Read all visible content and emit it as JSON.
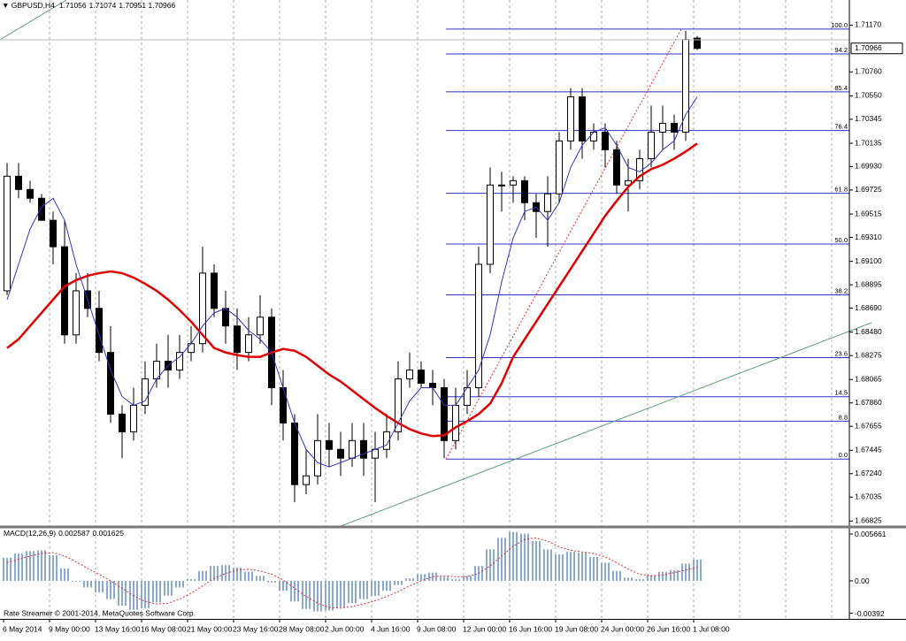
{
  "chart_data": {
    "type": "candlestick",
    "title": "GBPUSD,H4",
    "categories": [
      "6 May 2014",
      null,
      null,
      null,
      "9 May 00:00",
      null,
      null,
      null,
      "13 May 16:00",
      null,
      null,
      null,
      "16 May 08:00",
      null,
      null,
      null,
      "21 May 00:00",
      null,
      null,
      null,
      "23 May 16:00",
      null,
      null,
      null,
      "28 May 08:00",
      null,
      null,
      null,
      "2 Jun 00:00",
      null,
      null,
      null,
      "4 Jun 16:00",
      null,
      null,
      null,
      "9 Jun 08:00",
      null,
      null,
      null,
      "12 Jun 00:00",
      null,
      null,
      null,
      "16 Jun 16:00",
      null,
      null,
      null,
      "19 Jun 08:00",
      null,
      null,
      null,
      "24 Jun 00:00",
      null,
      null,
      null,
      "26 Jun 16:00",
      null,
      null,
      null,
      "1 Jul 08:00"
    ],
    "open": [
      1.68842,
      1.69846,
      1.6973,
      1.69653,
      1.6946,
      1.69228,
      1.68456,
      1.68842,
      1.68688,
      1.68302,
      1.67762,
      1.67607,
      1.67839,
      1.6807,
      1.68225,
      1.68148,
      1.68302,
      1.68379,
      1.68997,
      1.68688,
      1.68534,
      1.68302,
      1.68456,
      1.68611,
      1.67993,
      1.67684,
      1.67144,
      1.67221,
      1.6753,
      1.67453,
      1.67376,
      1.6753,
      1.67376,
      1.67453,
      1.67607,
      1.6807,
      1.68148,
      1.68032,
      1.67993,
      1.6753,
      1.67839,
      1.67993,
      1.69074,
      1.69769,
      1.69769,
      1.69807,
      1.69614,
      1.69537,
      1.69692,
      1.70155,
      1.70541,
      1.70155,
      1.70232,
      1.70078,
      1.69769,
      1.69807,
      1.7,
      1.70232,
      1.70309,
      1.70232,
      1.71056
    ],
    "high": [
      1.69962,
      1.69962,
      1.69807,
      1.69692,
      1.69537,
      1.6946,
      1.68997,
      1.68997,
      1.68842,
      1.68534,
      1.67839,
      1.67993,
      1.68225,
      1.68379,
      1.68456,
      1.68456,
      1.68534,
      1.69228,
      1.69074,
      1.68842,
      1.68688,
      1.68611,
      1.68804,
      1.68688,
      1.68148,
      1.67762,
      1.67453,
      1.67762,
      1.67684,
      1.67607,
      1.67684,
      1.67684,
      1.67607,
      1.67762,
      1.68225,
      1.68302,
      1.68225,
      1.68148,
      1.6807,
      1.67993,
      1.68148,
      1.69228,
      1.69923,
      1.69885,
      1.69846,
      1.69846,
      1.69692,
      1.69846,
      1.70232,
      1.70618,
      1.70618,
      1.70309,
      1.70309,
      1.70155,
      1.7,
      1.70078,
      1.70464,
      1.70464,
      1.70386,
      1.7112,
      1.71074
    ],
    "low": [
      1.68804,
      1.69653,
      1.69614,
      1.6946,
      1.69074,
      1.68379,
      1.68379,
      1.68611,
      1.68225,
      1.67684,
      1.67376,
      1.6753,
      1.67762,
      1.67993,
      1.67993,
      1.6807,
      1.68225,
      1.68302,
      1.68611,
      1.68379,
      1.68148,
      1.68225,
      1.68379,
      1.67839,
      1.6753,
      1.6699,
      1.6706,
      1.67144,
      1.67299,
      1.67221,
      1.67299,
      1.67221,
      1.6699,
      1.67376,
      1.6753,
      1.67993,
      1.67993,
      1.67839,
      1.67376,
      1.67453,
      1.67762,
      1.67916,
      1.68997,
      1.69537,
      1.69614,
      1.6946,
      1.69306,
      1.69228,
      1.69614,
      1.70078,
      1.7,
      1.70078,
      1.69923,
      1.69692,
      1.69537,
      1.6973,
      1.69923,
      1.70078,
      1.70078,
      1.70155,
      1.70951
    ],
    "close": [
      1.69846,
      1.6973,
      1.69653,
      1.6946,
      1.69228,
      1.68456,
      1.68842,
      1.68688,
      1.68302,
      1.67762,
      1.67607,
      1.67839,
      1.6807,
      1.68225,
      1.68148,
      1.68302,
      1.68379,
      1.68997,
      1.68688,
      1.68534,
      1.68302,
      1.68456,
      1.68611,
      1.67993,
      1.67684,
      1.67144,
      1.67221,
      1.6753,
      1.67453,
      1.67376,
      1.6753,
      1.67376,
      1.67453,
      1.67607,
      1.6807,
      1.68148,
      1.68032,
      1.67993,
      1.6753,
      1.67839,
      1.67993,
      1.69074,
      1.69769,
      1.69769,
      1.69807,
      1.69614,
      1.69537,
      1.69692,
      1.70155,
      1.70541,
      1.70155,
      1.70232,
      1.70078,
      1.69769,
      1.69807,
      1.7,
      1.70232,
      1.70309,
      1.70232,
      1.71043,
      1.70966
    ],
    "moving_averages": [
      {
        "color": "#e00000",
        "values": [
          1.68341,
          1.68418,
          1.68534,
          1.68649,
          1.68765,
          1.68881,
          1.68935,
          1.68974,
          1.68997,
          1.69012,
          1.68997,
          1.68958,
          1.68904,
          1.68842,
          1.68765,
          1.68673,
          1.68572,
          1.68456,
          1.68341,
          1.68302,
          1.68279,
          1.68263,
          1.68263,
          1.68302,
          1.68333,
          1.68317,
          1.68263,
          1.68186,
          1.68109,
          1.68047,
          1.6797,
          1.67893,
          1.67816,
          1.67746,
          1.67684,
          1.6763,
          1.67592,
          1.67569,
          1.67576,
          1.67646,
          1.677,
          1.67762,
          1.67854,
          1.68032,
          1.68263,
          1.68418,
          1.68572,
          1.68727,
          1.68881,
          1.69035,
          1.6919,
          1.69344,
          1.69499,
          1.6963,
          1.69753,
          1.69846,
          1.69908,
          1.69946,
          1.7,
          1.70062,
          1.70132
        ]
      },
      {
        "color": "#3535c8",
        "values": [
          1.68765,
          1.69074,
          1.69383,
          1.69576,
          1.69653,
          1.6946,
          1.69074,
          1.68765,
          1.68456,
          1.68148,
          1.67916,
          1.67839,
          1.67877,
          1.6807,
          1.68186,
          1.68263,
          1.68379,
          1.68534,
          1.68649,
          1.68688,
          1.68611,
          1.68495,
          1.68418,
          1.68302,
          1.67993,
          1.67684,
          1.67453,
          1.67337,
          1.67299,
          1.67337,
          1.67376,
          1.67414,
          1.67453,
          1.67491,
          1.67684,
          1.67877,
          1.67993,
          1.67993,
          1.67839,
          1.67839,
          1.67993,
          1.68148,
          1.68456,
          1.6892,
          1.69306,
          1.69537,
          1.69576,
          1.6946,
          1.69614,
          1.69923,
          1.70116,
          1.70232,
          1.70271,
          1.70116,
          1.69923,
          1.69885,
          1.69962,
          1.70078,
          1.70155,
          1.70386,
          1.70541
        ]
      }
    ],
    "ylim": [
      1.66781,
      1.7139
    ],
    "yticks": [
      {
        "value": 1.7117,
        "label": "1.71170"
      },
      {
        "value": 1.7076,
        "label": "1.70760"
      },
      {
        "value": 1.7055,
        "label": "1.70550"
      },
      1.70345,
      1.70135,
      {
        "value": 1.6993,
        "label": "1.69930"
      },
      1.69725,
      1.69515,
      {
        "value": 1.6931,
        "label": "1.69310"
      },
      {
        "value": 1.691,
        "label": "1.69100"
      },
      1.68895,
      {
        "value": 1.6869,
        "label": "1.68690"
      },
      {
        "value": 1.6848,
        "label": "1.68480"
      },
      1.68275,
      1.68065,
      {
        "value": 1.6786,
        "label": "1.67860"
      },
      1.67655,
      1.67445,
      {
        "value": 1.6724,
        "label": "1.67240"
      },
      1.67035,
      1.66825
    ],
    "grid": true,
    "fibonacci": {
      "color": "#3030c8",
      "levels": [
        {
          "value": 1.71135,
          "label": "100.0"
        },
        {
          "value": 1.70917,
          "label": "94.2"
        },
        {
          "value": 1.70585,
          "label": "85.4"
        },
        {
          "value": 1.70246,
          "label": "76.4"
        },
        {
          "value": 1.69696,
          "label": "61.8"
        },
        {
          "value": 1.69252,
          "label": "50.0"
        },
        {
          "value": 1.68807,
          "label": "38.2"
        },
        {
          "value": 1.68257,
          "label": "23.6"
        },
        {
          "value": 1.67914,
          "label": "14.5"
        },
        {
          "value": 1.677,
          "label": "8.8"
        },
        {
          "value": 1.67368,
          "label": "0.0"
        }
      ]
    },
    "macd": {
      "title": "MACD(12,26,9)",
      "histogram_color": "#8aabcf",
      "signal_color": "#e03030",
      "macd": [
        0.0028,
        0.0033,
        0.0036,
        0.0037,
        0.0031,
        0.0015,
        -0.0001,
        -0.0008,
        -0.0014,
        -0.0022,
        -0.003,
        -0.0035,
        -0.0033,
        -0.0026,
        -0.0018,
        -0.0008,
        0.0002,
        0.0012,
        0.0018,
        0.0019,
        0.0016,
        0.0011,
        0.0006,
        -0.0002,
        -0.0012,
        -0.0025,
        -0.0034,
        -0.0037,
        -0.0036,
        -0.0032,
        -0.0027,
        -0.0022,
        -0.0018,
        -0.0012,
        -0.0005,
        0.0003,
        0.0008,
        0.001,
        0.0005,
        0.0002,
        0.0006,
        0.0018,
        0.0038,
        0.0052,
        0.0059,
        0.0057,
        0.0048,
        0.0038,
        0.0032,
        0.0035,
        0.0034,
        0.0029,
        0.0022,
        0.0012,
        0.0004,
        0.0002,
        0.0007,
        0.0011,
        0.0013,
        0.0021,
        0.002587
      ],
      "signal": [
        0.0022,
        0.0026,
        0.003,
        0.0033,
        0.0034,
        0.003,
        0.0023,
        0.0015,
        0.0008,
        0,
        -0.0009,
        -0.0018,
        -0.0025,
        -0.0028,
        -0.0027,
        -0.0022,
        -0.0015,
        -0.0006,
        0.0003,
        0.0009,
        0.0013,
        0.0014,
        0.0012,
        0.0008,
        0.0001,
        -0.0009,
        -0.0019,
        -0.0027,
        -0.0032,
        -0.0033,
        -0.0031,
        -0.0028,
        -0.0024,
        -0.0019,
        -0.0013,
        -0.0006,
        0,
        0.0005,
        0.0006,
        0.0005,
        0.0005,
        0.0009,
        0.0018,
        0.003,
        0.0042,
        0.005,
        0.0052,
        0.0048,
        0.0041,
        0.0037,
        0.0035,
        0.0033,
        0.0029,
        0.0022,
        0.0014,
        0.0008,
        0.0006,
        0.0007,
        0.001,
        0.0013,
        0.001625
      ],
      "ylim": [
        -0.0046,
        0.0063
      ],
      "yticks": [
        0.005661,
        {
          "value": 0,
          "label": "0.00"
        },
        -0.00392
      ]
    },
    "copyright": "Rate Streamer © 2001-2014, MetaQuotes Software Corp."
  }
}
